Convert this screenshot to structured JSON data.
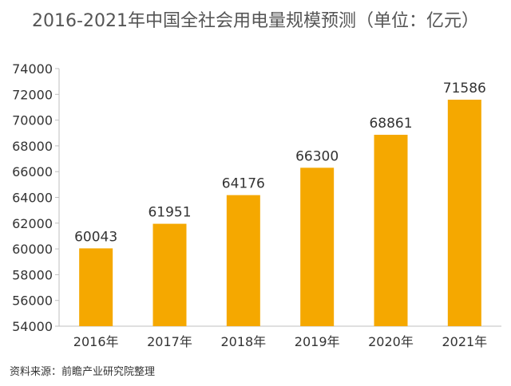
{
  "chart_data": {
    "type": "bar",
    "title": "2016-2021年中国全社会用电量规模预测（单位：亿元）",
    "categories": [
      "2016年",
      "2017年",
      "2018年",
      "2019年",
      "2020年",
      "2021年"
    ],
    "series": [
      {
        "values": [
          60043,
          61951,
          64176,
          66300,
          68861,
          71586
        ]
      }
    ],
    "yticks": [
      "54000",
      "56000",
      "58000",
      "60000",
      "62000",
      "64000",
      "66000",
      "68000",
      "70000",
      "72000",
      "74000"
    ],
    "ylim": [
      54000,
      74000
    ],
    "xlabel": "",
    "ylabel": "",
    "grid": false,
    "legend": "none",
    "bar_color": "#F5A800",
    "source": "资料来源：前瞻产业研究院整理"
  }
}
